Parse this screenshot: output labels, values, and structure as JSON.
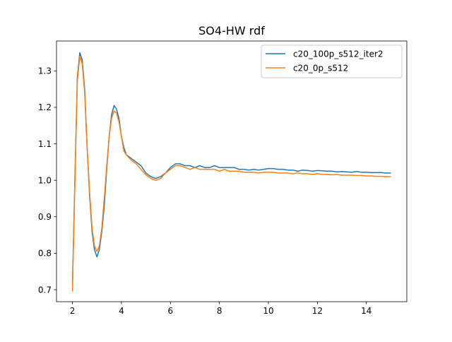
{
  "chart_data": {
    "type": "line",
    "title": "SO4-HW rdf",
    "xlabel": "",
    "ylabel": "",
    "xlim": [
      1.35,
      15.65
    ],
    "ylim": [
      0.667,
      1.382
    ],
    "xticks": [
      2,
      4,
      6,
      8,
      10,
      12,
      14
    ],
    "yticks": [
      0.7,
      0.8,
      0.9,
      1.0,
      1.1,
      1.2,
      1.3
    ],
    "grid": false,
    "legend_position": "upper right",
    "series": [
      {
        "name": "c20_100p_s512_iter2",
        "color": "#1f77b4",
        "points": [
          [
            2.0,
            0.71
          ],
          [
            2.1,
            1.0
          ],
          [
            2.2,
            1.28
          ],
          [
            2.3,
            1.35
          ],
          [
            2.4,
            1.33
          ],
          [
            2.5,
            1.25
          ],
          [
            2.6,
            1.09
          ],
          [
            2.7,
            0.96
          ],
          [
            2.8,
            0.86
          ],
          [
            2.9,
            0.81
          ],
          [
            3.0,
            0.79
          ],
          [
            3.1,
            0.81
          ],
          [
            3.2,
            0.86
          ],
          [
            3.3,
            0.93
          ],
          [
            3.4,
            1.03
          ],
          [
            3.5,
            1.12
          ],
          [
            3.6,
            1.18
          ],
          [
            3.7,
            1.205
          ],
          [
            3.8,
            1.195
          ],
          [
            3.9,
            1.17
          ],
          [
            4.0,
            1.12
          ],
          [
            4.1,
            1.09
          ],
          [
            4.2,
            1.07
          ],
          [
            4.4,
            1.06
          ],
          [
            4.6,
            1.05
          ],
          [
            4.8,
            1.04
          ],
          [
            5.0,
            1.02
          ],
          [
            5.2,
            1.01
          ],
          [
            5.4,
            1.005
          ],
          [
            5.6,
            1.01
          ],
          [
            5.8,
            1.02
          ],
          [
            6.0,
            1.035
          ],
          [
            6.2,
            1.045
          ],
          [
            6.4,
            1.045
          ],
          [
            6.6,
            1.04
          ],
          [
            6.8,
            1.04
          ],
          [
            7.0,
            1.035
          ],
          [
            7.2,
            1.04
          ],
          [
            7.4,
            1.035
          ],
          [
            7.6,
            1.035
          ],
          [
            7.8,
            1.04
          ],
          [
            8.0,
            1.035
          ],
          [
            8.2,
            1.035
          ],
          [
            8.4,
            1.035
          ],
          [
            8.6,
            1.035
          ],
          [
            8.8,
            1.03
          ],
          [
            9.0,
            1.03
          ],
          [
            9.2,
            1.028
          ],
          [
            9.4,
            1.03
          ],
          [
            9.6,
            1.028
          ],
          [
            9.8,
            1.03
          ],
          [
            10.0,
            1.032
          ],
          [
            10.2,
            1.032
          ],
          [
            10.4,
            1.03
          ],
          [
            10.6,
            1.03
          ],
          [
            10.8,
            1.028
          ],
          [
            11.0,
            1.028
          ],
          [
            11.2,
            1.025
          ],
          [
            11.4,
            1.028
          ],
          [
            11.6,
            1.027
          ],
          [
            11.8,
            1.025
          ],
          [
            12.0,
            1.027
          ],
          [
            12.2,
            1.026
          ],
          [
            12.4,
            1.025
          ],
          [
            12.6,
            1.025
          ],
          [
            12.8,
            1.023
          ],
          [
            13.0,
            1.024
          ],
          [
            13.2,
            1.023
          ],
          [
            13.4,
            1.022
          ],
          [
            13.6,
            1.024
          ],
          [
            13.8,
            1.022
          ],
          [
            14.0,
            1.022
          ],
          [
            14.2,
            1.021
          ],
          [
            14.4,
            1.021
          ],
          [
            14.6,
            1.021
          ],
          [
            14.8,
            1.02
          ],
          [
            15.0,
            1.02
          ]
        ]
      },
      {
        "name": "c20_0p_s512",
        "color": "#ff7f0e",
        "points": [
          [
            2.0,
            0.695
          ],
          [
            2.1,
            0.99
          ],
          [
            2.2,
            1.27
          ],
          [
            2.3,
            1.34
          ],
          [
            2.4,
            1.32
          ],
          [
            2.5,
            1.24
          ],
          [
            2.6,
            1.09
          ],
          [
            2.7,
            0.97
          ],
          [
            2.8,
            0.87
          ],
          [
            2.9,
            0.82
          ],
          [
            3.0,
            0.805
          ],
          [
            3.1,
            0.82
          ],
          [
            3.2,
            0.87
          ],
          [
            3.3,
            0.95
          ],
          [
            3.4,
            1.04
          ],
          [
            3.5,
            1.12
          ],
          [
            3.6,
            1.17
          ],
          [
            3.7,
            1.19
          ],
          [
            3.8,
            1.185
          ],
          [
            3.9,
            1.16
          ],
          [
            4.0,
            1.12
          ],
          [
            4.1,
            1.08
          ],
          [
            4.2,
            1.07
          ],
          [
            4.4,
            1.055
          ],
          [
            4.6,
            1.045
          ],
          [
            4.8,
            1.03
          ],
          [
            5.0,
            1.015
          ],
          [
            5.2,
            1.005
          ],
          [
            5.4,
            1.0
          ],
          [
            5.6,
            1.005
          ],
          [
            5.8,
            1.02
          ],
          [
            6.0,
            1.03
          ],
          [
            6.2,
            1.04
          ],
          [
            6.4,
            1.04
          ],
          [
            6.6,
            1.035
          ],
          [
            6.8,
            1.03
          ],
          [
            7.0,
            1.035
          ],
          [
            7.2,
            1.03
          ],
          [
            7.4,
            1.03
          ],
          [
            7.6,
            1.03
          ],
          [
            7.8,
            1.03
          ],
          [
            8.0,
            1.025
          ],
          [
            8.2,
            1.03
          ],
          [
            8.4,
            1.025
          ],
          [
            8.6,
            1.025
          ],
          [
            8.8,
            1.025
          ],
          [
            9.0,
            1.022
          ],
          [
            9.2,
            1.022
          ],
          [
            9.4,
            1.022
          ],
          [
            9.6,
            1.02
          ],
          [
            9.8,
            1.022
          ],
          [
            10.0,
            1.022
          ],
          [
            10.2,
            1.022
          ],
          [
            10.4,
            1.02
          ],
          [
            10.6,
            1.02
          ],
          [
            10.8,
            1.02
          ],
          [
            11.0,
            1.018
          ],
          [
            11.2,
            1.02
          ],
          [
            11.4,
            1.018
          ],
          [
            11.6,
            1.018
          ],
          [
            11.8,
            1.016
          ],
          [
            12.0,
            1.018
          ],
          [
            12.2,
            1.016
          ],
          [
            12.4,
            1.016
          ],
          [
            12.6,
            1.015
          ],
          [
            12.8,
            1.016
          ],
          [
            13.0,
            1.014
          ],
          [
            13.2,
            1.014
          ],
          [
            13.4,
            1.014
          ],
          [
            13.6,
            1.013
          ],
          [
            13.8,
            1.013
          ],
          [
            14.0,
            1.012
          ],
          [
            14.2,
            1.012
          ],
          [
            14.4,
            1.011
          ],
          [
            14.6,
            1.011
          ],
          [
            14.8,
            1.01
          ],
          [
            15.0,
            1.01
          ]
        ]
      }
    ]
  }
}
